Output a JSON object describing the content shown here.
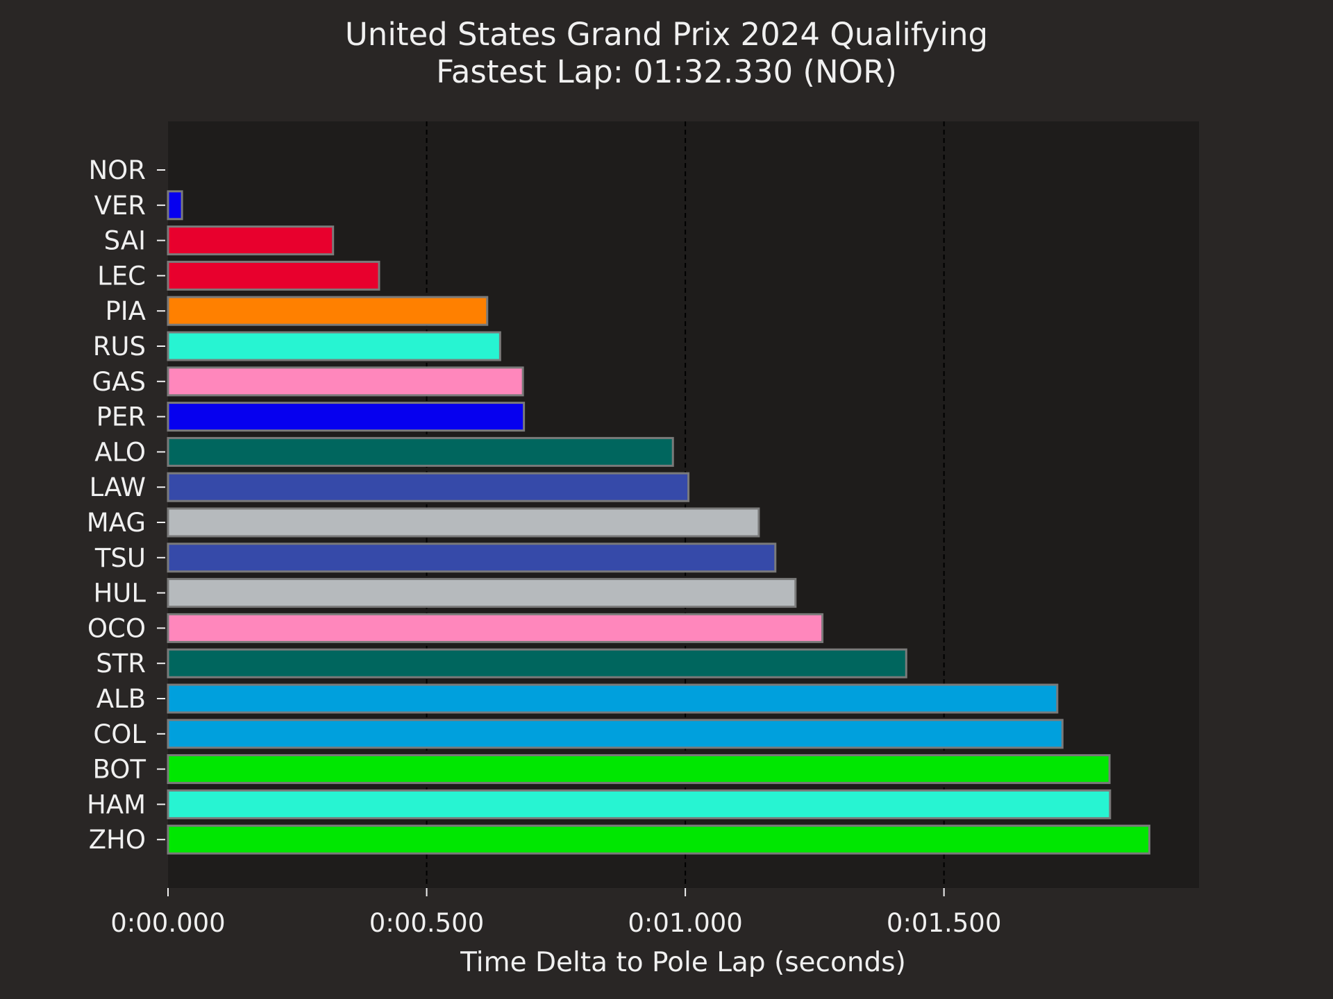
{
  "chart_data": {
    "type": "bar",
    "orientation": "horizontal",
    "title": "United States Grand Prix 2024 Qualifying",
    "subtitle": "Fastest Lap: 01:32.330 (NOR)",
    "xlabel": "Time Delta to Pole Lap (seconds)",
    "ylabel": "",
    "xlim": [
      0,
      1.993
    ],
    "xticks": [
      {
        "value": 0.0,
        "label": "0:00.000"
      },
      {
        "value": 0.5,
        "label": "0:00.500"
      },
      {
        "value": 1.0,
        "label": "0:01.000"
      },
      {
        "value": 1.5,
        "label": "0:01.500"
      }
    ],
    "grid": "vertical dashed at x ticks",
    "background_color": "#292625",
    "plot_background_color": "#1e1c1b",
    "bar_edge_color": "#7a7a7a",
    "categories": [
      "NOR",
      "VER",
      "SAI",
      "LEC",
      "PIA",
      "RUS",
      "GAS",
      "PER",
      "ALO",
      "LAW",
      "MAG",
      "TSU",
      "HUL",
      "OCO",
      "STR",
      "ALB",
      "COL",
      "BOT",
      "HAM",
      "ZHO"
    ],
    "values": [
      0.0,
      0.027,
      0.319,
      0.408,
      0.617,
      0.642,
      0.686,
      0.688,
      0.976,
      1.006,
      1.142,
      1.174,
      1.213,
      1.265,
      1.427,
      1.719,
      1.729,
      1.82,
      1.821,
      1.897
    ],
    "colors": [
      "#ff8000",
      "#0600ef",
      "#e8002d",
      "#e8002d",
      "#ff8000",
      "#27f4d2",
      "#ff87bc",
      "#0600ef",
      "#00665e",
      "#364aa9",
      "#b6babd",
      "#364aa9",
      "#b6babd",
      "#ff87bc",
      "#00665e",
      "#00a0dd",
      "#00a0dd",
      "#00e701",
      "#27f4d2",
      "#00e701"
    ]
  }
}
